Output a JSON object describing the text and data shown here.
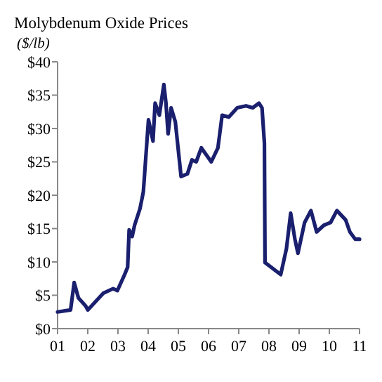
{
  "chart_data": {
    "type": "line",
    "title": "Molybdenum Oxide Prices",
    "ylabel": "($/lb)",
    "x": [
      2001.0,
      2001.43,
      2001.55,
      2001.69,
      2001.93,
      2002.0,
      2002.51,
      2002.84,
      2002.98,
      2003.22,
      2003.32,
      2003.37,
      2003.47,
      2003.55,
      2003.73,
      2003.84,
      2004.01,
      2004.16,
      2004.23,
      2004.37,
      2004.52,
      2004.59,
      2004.66,
      2004.76,
      2004.9,
      2005.09,
      2005.3,
      2005.45,
      2005.59,
      2005.76,
      2006.09,
      2006.31,
      2006.45,
      2006.67,
      2006.95,
      2007.24,
      2007.46,
      2007.67,
      2007.77,
      2007.85,
      2007.87,
      2007.9,
      2008.39,
      2008.58,
      2008.72,
      2008.86,
      2008.96,
      2009.18,
      2009.39,
      2009.58,
      2009.82,
      2010.04,
      2010.25,
      2010.54,
      2010.68,
      2010.86,
      2011.0
    ],
    "series": [
      {
        "color": "#1a1f6e",
        "values": [
          2.5,
          2.8,
          6.9,
          4.6,
          3.4,
          2.8,
          5.3,
          6,
          5.7,
          8.1,
          9.2,
          14.8,
          13.8,
          15.5,
          18,
          20.5,
          31.3,
          28.1,
          33.8,
          32,
          36.6,
          33.8,
          29.2,
          33.1,
          31,
          22.8,
          23.2,
          25.3,
          25,
          27.1,
          25,
          27.1,
          32,
          31.7,
          33.1,
          33.4,
          33.1,
          33.8,
          33.1,
          27.8,
          9.9,
          9.8,
          8.1,
          12,
          17.3,
          13.4,
          11.3,
          15.9,
          17.7,
          14.5,
          15.5,
          15.9,
          17.7,
          16.3,
          14.5,
          13.4,
          13.4
        ]
      }
    ],
    "xlim": [
      2001,
      2011
    ],
    "xticks": [
      {
        "value": 2001,
        "label": "01"
      },
      {
        "value": 2002,
        "label": "02"
      },
      {
        "value": 2003,
        "label": "03"
      },
      {
        "value": 2004,
        "label": "04"
      },
      {
        "value": 2005,
        "label": "05"
      },
      {
        "value": 2006,
        "label": "06"
      },
      {
        "value": 2007,
        "label": "07"
      },
      {
        "value": 2008,
        "label": "08"
      },
      {
        "value": 2009,
        "label": "09"
      },
      {
        "value": 2010,
        "label": "10"
      },
      {
        "value": 2011,
        "label": "11"
      }
    ],
    "ylim": [
      0,
      40
    ],
    "yticks": [
      {
        "value": 0,
        "label": "$0"
      },
      {
        "value": 5,
        "label": "$5"
      },
      {
        "value": 10,
        "label": "$10"
      },
      {
        "value": 15,
        "label": "$15"
      },
      {
        "value": 20,
        "label": "$20"
      },
      {
        "value": 25,
        "label": "$25"
      },
      {
        "value": 30,
        "label": "$30"
      },
      {
        "value": 35,
        "label": "$35"
      },
      {
        "value": 40,
        "label": "$40"
      }
    ],
    "grid": false,
    "line_style": "solid"
  }
}
